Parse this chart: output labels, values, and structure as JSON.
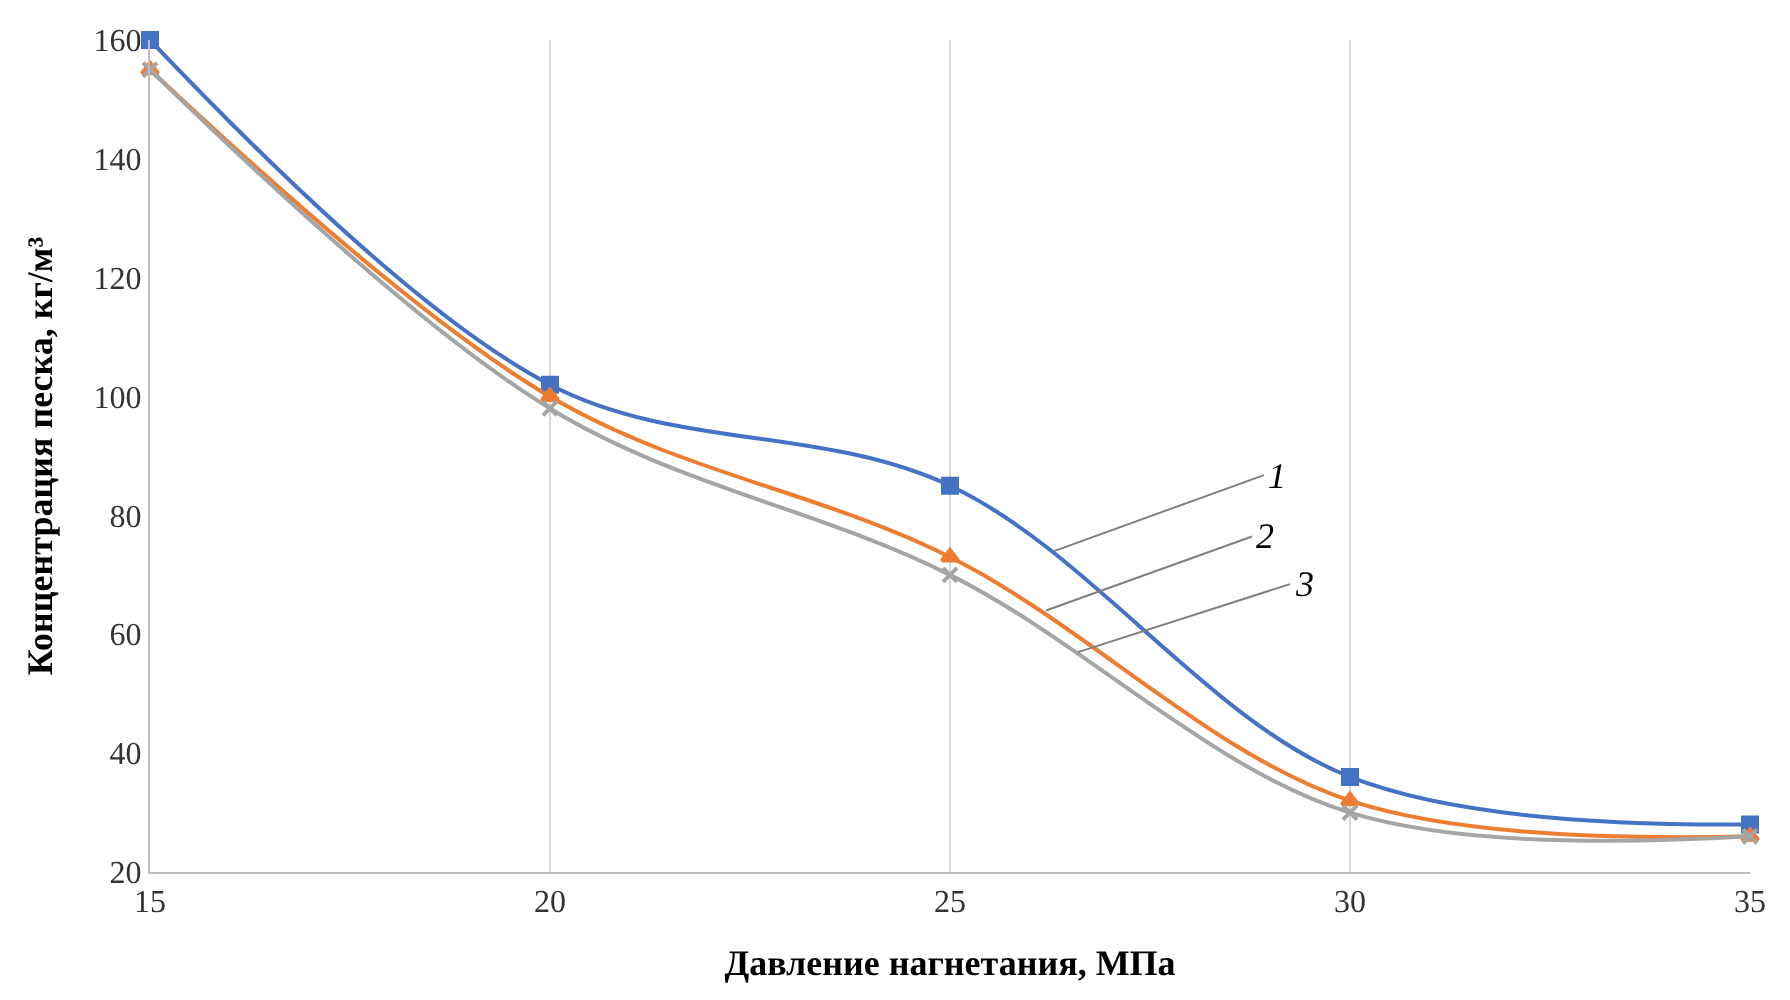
{
  "chart_data": {
    "type": "line",
    "xlabel": "Давление нагнетания, МПа",
    "ylabel": "Концентрация песка, кг/м³",
    "x": [
      15,
      20,
      25,
      30,
      35
    ],
    "series": [
      {
        "color": "#4472c4",
        "marker": "square",
        "values": [
          160,
          102,
          85,
          36,
          28
        ]
      },
      {
        "color": "#ed7d31",
        "marker": "triangle",
        "values": [
          155,
          100,
          73,
          32,
          26
        ]
      },
      {
        "color": "#a5a5a5",
        "marker": "cross",
        "values": [
          155,
          98,
          70,
          30,
          26
        ]
      }
    ],
    "xlim": [
      15,
      35
    ],
    "xticks": [
      15,
      20,
      25,
      30,
      35
    ],
    "ylim": [
      20,
      160
    ],
    "yticks": [
      20,
      40,
      60,
      80,
      100,
      120,
      140,
      160
    ],
    "grid": "x",
    "line_style": "solid",
    "annotations": [
      {
        "text": "1",
        "x": 26.3,
        "y": 74
      },
      {
        "text": "2",
        "x": 26.2,
        "y": 64
      },
      {
        "text": "3",
        "x": 26.6,
        "y": 57
      }
    ]
  }
}
